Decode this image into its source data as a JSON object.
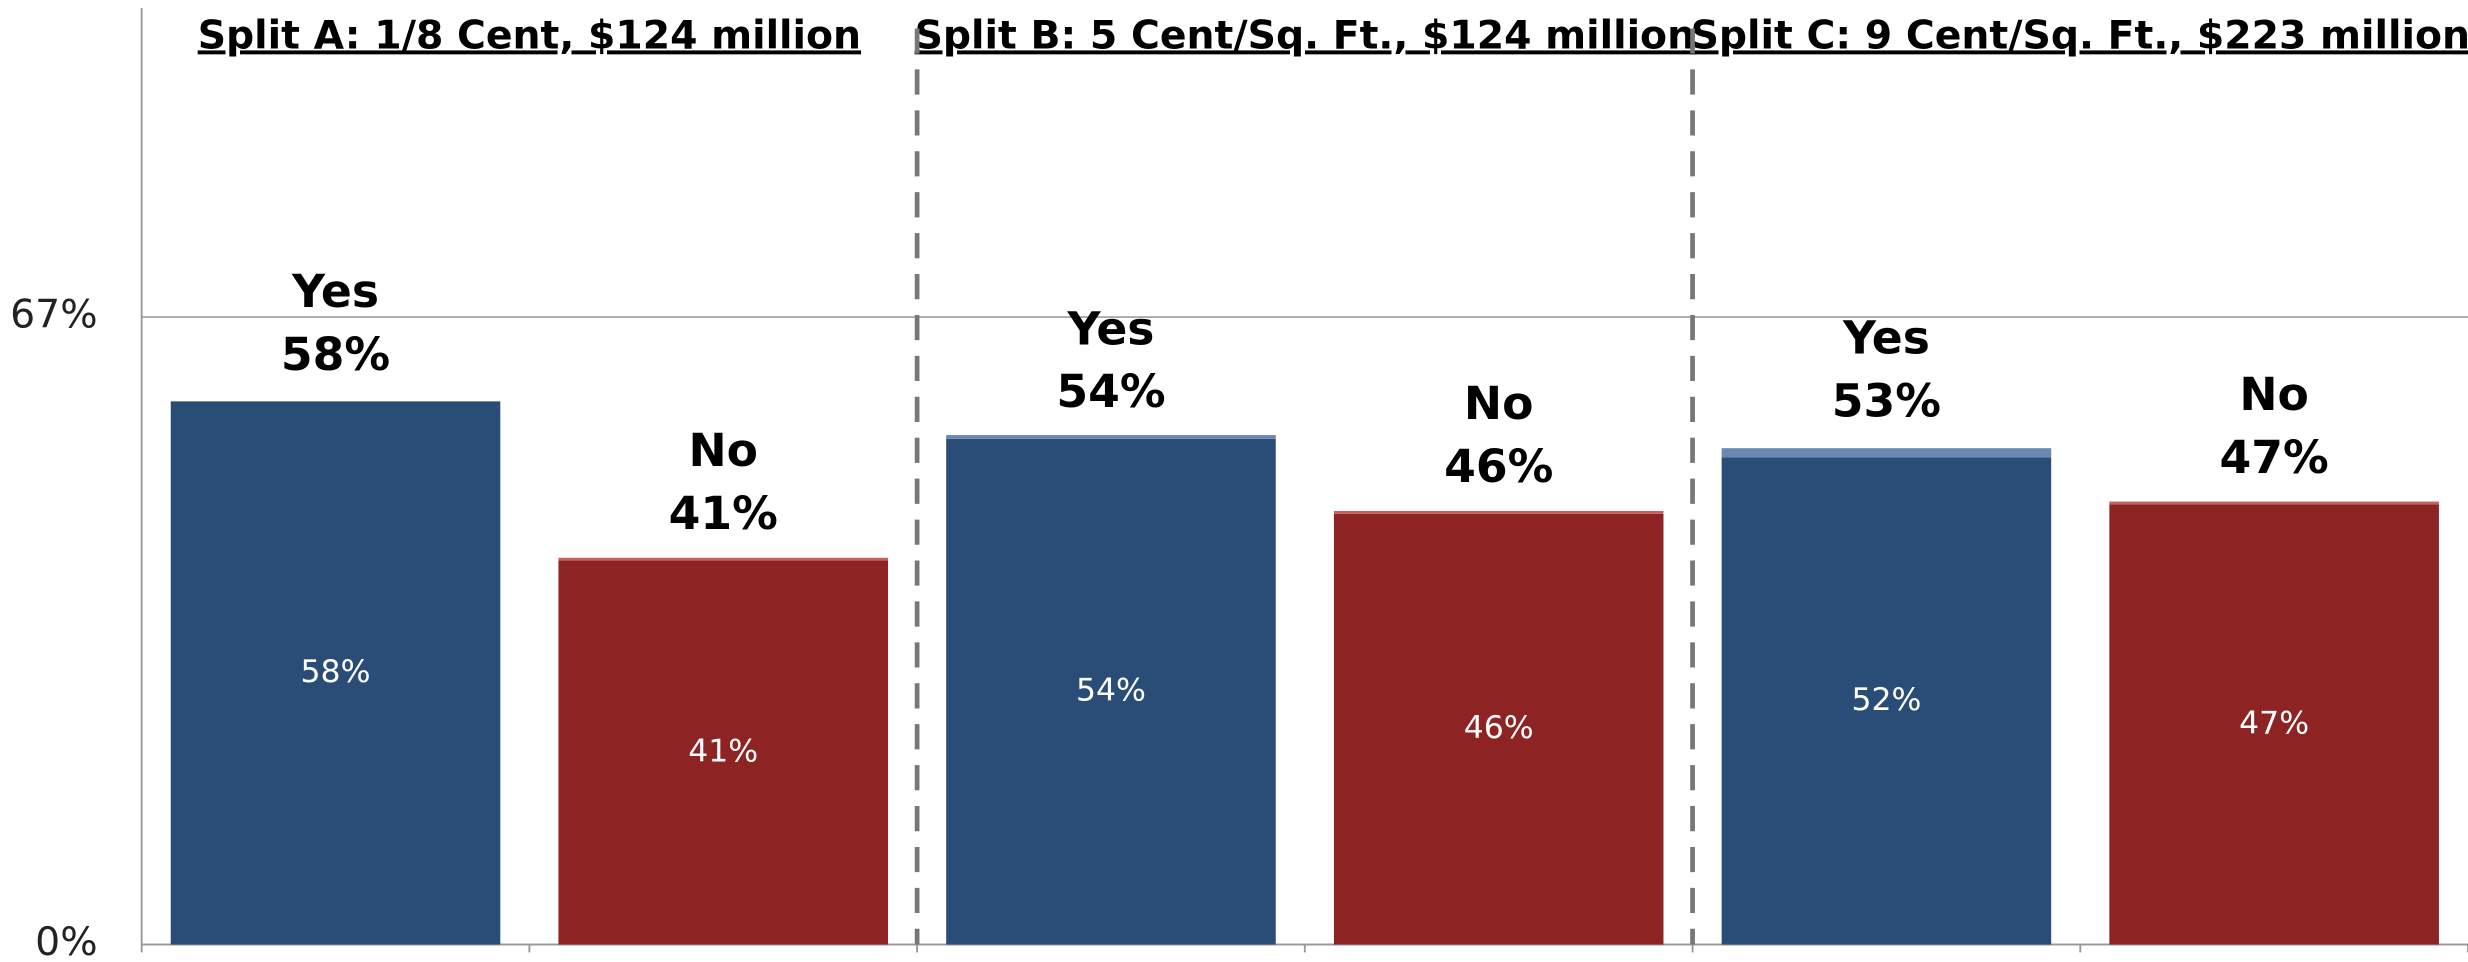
{
  "chart_data": {
    "type": "stacked_bar",
    "groups": [
      "Split A: 1/8 Cent, $124 million",
      "Split B: 5 Cent/Sq. Ft., $124 million",
      "Split C: 9 Cent/Sq. Ft., $223 million"
    ],
    "categories": [
      null,
      null,
      null,
      null,
      null,
      null
    ],
    "series": [
      {
        "colors": [
          "#2a4d77",
          "#8e2323",
          "#2a4d77",
          "#8e2323",
          "#2a4d77",
          "#8e2323"
        ],
        "values": [
          58,
          41,
          54,
          46,
          52,
          47
        ],
        "value_labels": [
          "58%",
          "41%",
          "54%",
          "46%",
          "52%",
          "47%"
        ]
      },
      {
        "colors": [
          "#6a88b0",
          "#c46060",
          "#6a88b0",
          "#c46060",
          "#6a88b0",
          "#c46060"
        ],
        "values": [
          0,
          0.3,
          0.4,
          0.3,
          1,
          0.3
        ]
      }
    ],
    "total_names": [
      "Yes",
      "No",
      "Yes",
      "No",
      "Yes",
      "No"
    ],
    "totals": [
      58,
      41,
      54,
      46,
      53,
      47
    ],
    "total_labels": [
      "58%",
      "41%",
      "54%",
      "46%",
      "53%",
      "47%"
    ],
    "ylim": [
      0,
      100
    ],
    "yticks": [
      {
        "value": 0,
        "label": "0%"
      },
      {
        "value": 67,
        "label": "67%"
      }
    ],
    "grid": true
  }
}
